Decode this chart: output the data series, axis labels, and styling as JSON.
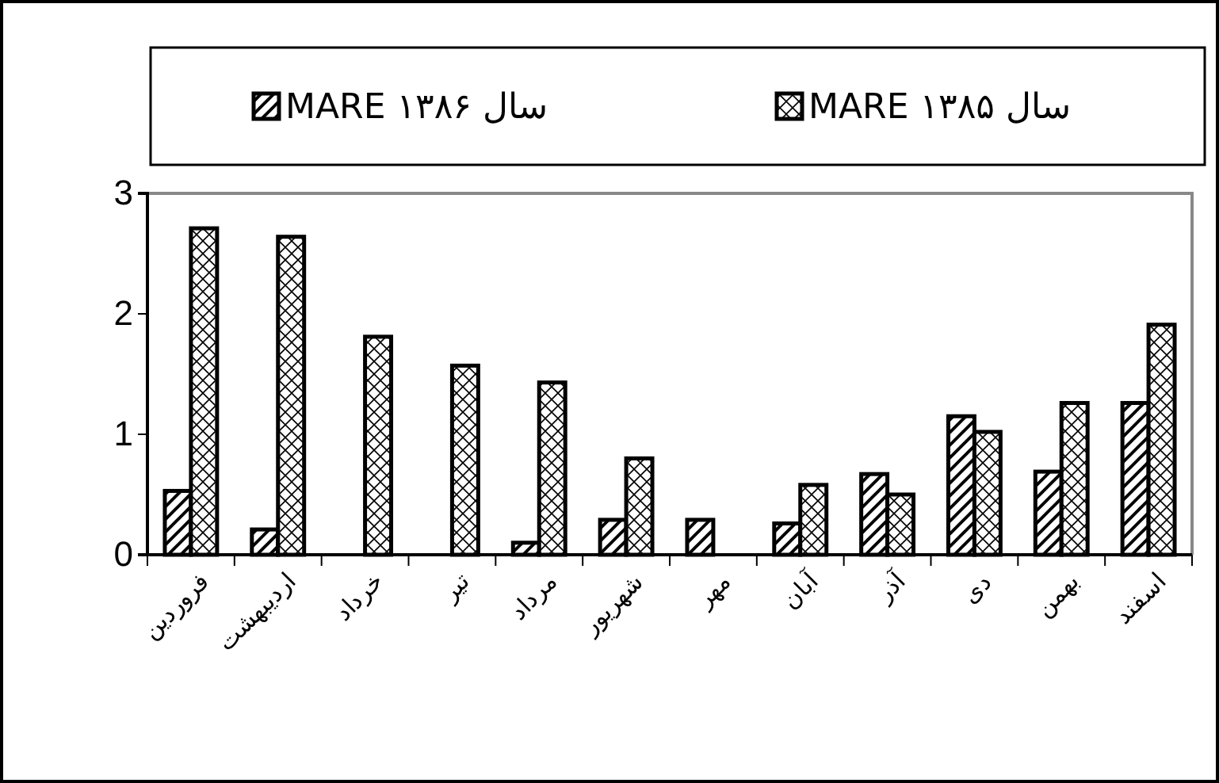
{
  "chart_data": {
    "type": "bar",
    "categories": [
      "فروردین",
      "اردیبهشت",
      "خرداد",
      "تیر",
      "مرداد",
      "شهریور",
      "مهر",
      "آبان",
      "آذر",
      "دی",
      "بهمن",
      "اسفند"
    ],
    "series": [
      {
        "name": "سال ۱۳۸۶ MARE",
        "color": "#000000",
        "values": [
          0.53,
          0.21,
          0,
          0,
          0.1,
          0.29,
          0.29,
          0.26,
          0.67,
          1.15,
          0.69,
          1.26
        ]
      },
      {
        "name": "سال ۱۳۸۵ MARE",
        "color": "#000000",
        "values": [
          2.71,
          2.64,
          1.81,
          1.57,
          1.43,
          0.8,
          0,
          0.58,
          0.5,
          1.02,
          1.26,
          1.91
        ]
      }
    ],
    "ylim": [
      0,
      3
    ],
    "yticks": [
      0,
      1,
      2,
      3
    ],
    "grid": false,
    "legend": "top"
  }
}
